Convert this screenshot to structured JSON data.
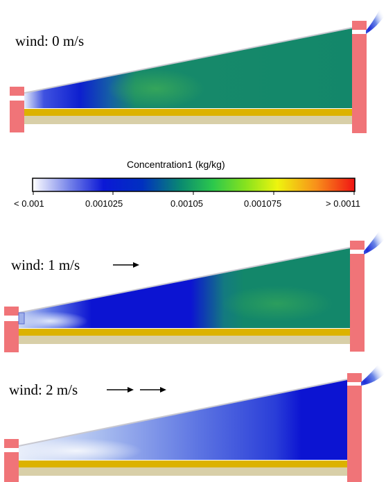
{
  "colorbar": {
    "title": "Concentration1 (kg/kg)",
    "ticks": [
      "< 0.001",
      "0.001025",
      "0.00105",
      "0.001075",
      "> 0.0011"
    ],
    "gradient_colors": [
      "#ffffff",
      "#1a1ad8",
      "#0000c8",
      "#0a8a70",
      "#2ad04a",
      "#8ae61c",
      "#f4f40c",
      "#f89010",
      "#f01010"
    ]
  },
  "panels": [
    {
      "id": "wind-0",
      "label": "wind: 0 m/s",
      "arrow_count": 0
    },
    {
      "id": "wind-1",
      "label": "wind: 1 m/s",
      "arrow_count": 1
    },
    {
      "id": "wind-2",
      "label": "wind: 2 m/s",
      "arrow_count": 2
    }
  ],
  "colors": {
    "wall": "#f07478",
    "floor_gold": "#dcb200",
    "floor_base": "#d8cfa8",
    "field_green": "#13876a",
    "field_light_green": "#2ea05c",
    "field_blue": "#0c14d2",
    "field_pale_blue": "#c4d4f4"
  }
}
